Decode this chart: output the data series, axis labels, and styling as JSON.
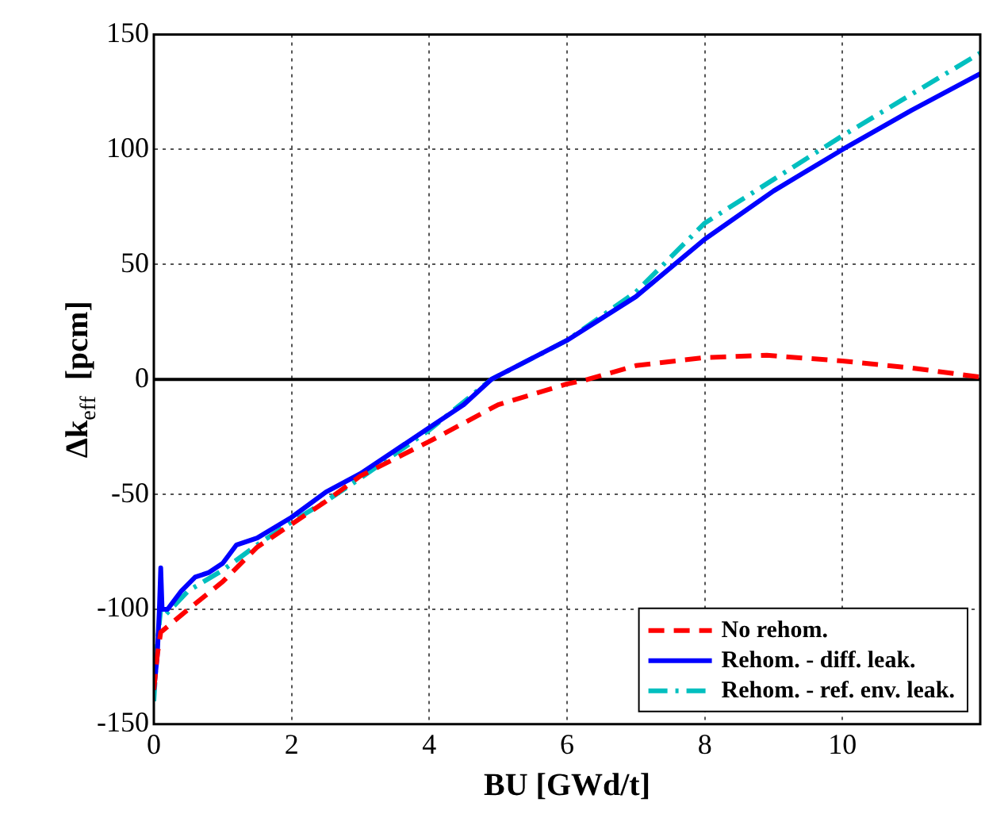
{
  "chart_data": {
    "type": "line",
    "xlabel": "BU [GWd/t]",
    "ylabel": "Δk$_{eff}$  [pcm]",
    "xlim": [
      0,
      12
    ],
    "xticks": [
      0,
      2,
      4,
      6,
      8,
      10
    ],
    "ylim": [
      -150,
      150
    ],
    "yticks": [
      -150,
      -100,
      -50,
      0,
      50,
      100,
      150
    ],
    "grid": true,
    "legend": "bottom right",
    "marker": "none",
    "ref_lines": [
      {
        "axis": "y",
        "value": 0,
        "color": "#000000",
        "line_style": "solid"
      }
    ],
    "series": [
      {
        "name": "No rehom.",
        "color": "#ff0000",
        "line_style": "dashed",
        "x": [
          0,
          0.05,
          0.1,
          0.3,
          0.5,
          1,
          1.5,
          2,
          2.5,
          3,
          4,
          5,
          6,
          6.3,
          7,
          8,
          8.9,
          10,
          11,
          12
        ],
        "values": [
          -135,
          -120,
          -110,
          -105,
          -100,
          -88,
          -73,
          -63,
          -53,
          -42,
          -27,
          -11,
          -2,
          0,
          6,
          9.5,
          10.5,
          8,
          5,
          1
        ]
      },
      {
        "name": "Rehom. - diff. leak.",
        "color": "#0000ff",
        "line_style": "solid",
        "x": [
          0,
          0.05,
          0.08,
          0.1,
          0.12,
          0.2,
          0.4,
          0.6,
          0.8,
          1,
          1.2,
          1.5,
          2,
          2.5,
          3,
          3.5,
          4,
          4.5,
          4.9,
          6,
          7,
          8,
          9,
          10,
          11,
          12
        ],
        "values": [
          -135,
          -120,
          -100,
          -82,
          -100,
          -100,
          -92,
          -86,
          -84,
          -80,
          -72,
          -69,
          -60,
          -49,
          -41,
          -31,
          -21,
          -11,
          0,
          17,
          36,
          61,
          82,
          100,
          117,
          133
        ]
      },
      {
        "name": "Rehom. - ref. env. leak.",
        "color": "#00bfbf",
        "line_style": "dashdot",
        "x": [
          0,
          0.05,
          0.1,
          0.15,
          0.5,
          1,
          1.5,
          2,
          2.5,
          3,
          4,
          4.9,
          6,
          7,
          8,
          9,
          10,
          11,
          12
        ],
        "values": [
          -140,
          -115,
          -100,
          -103,
          -92,
          -83,
          -72,
          -62,
          -53,
          -43,
          -22,
          0,
          17,
          38,
          68,
          87,
          106,
          124,
          142
        ]
      }
    ]
  }
}
